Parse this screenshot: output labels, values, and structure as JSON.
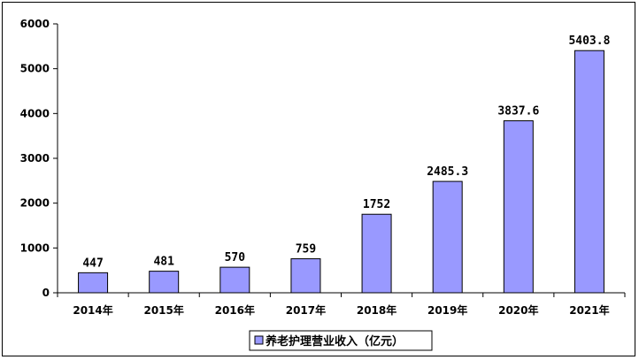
{
  "chart_data": {
    "type": "bar",
    "categories": [
      "2014年",
      "2015年",
      "2016年",
      "2017年",
      "2018年",
      "2019年",
      "2020年",
      "2021年"
    ],
    "series": [
      {
        "name": "养老护理营业收入（亿元）",
        "values": [
          447,
          481,
          570,
          759,
          1752,
          2485.3,
          3837.6,
          5403.8
        ],
        "labels": [
          "447",
          "481",
          "570",
          "759",
          "1752",
          "2485.3",
          "3837.6",
          "5403.8"
        ],
        "color": "#9999ff",
        "edge_color": "#000000"
      }
    ],
    "ylim": [
      0,
      6000
    ],
    "yticks": [
      "0",
      "1000",
      "2000",
      "3000",
      "4000",
      "5000",
      "6000"
    ],
    "ytick_values": [
      0,
      1000,
      2000,
      3000,
      4000,
      5000,
      6000
    ],
    "grid": false,
    "legend_position": "bottom"
  }
}
